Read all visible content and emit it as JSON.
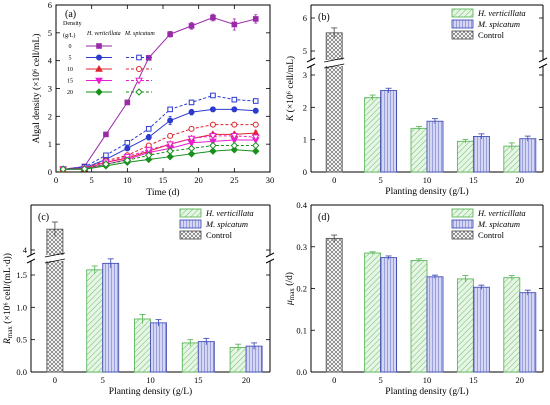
{
  "colors": {
    "hv_fill": "#e6f5e4",
    "hv_stroke": "#5cb85c",
    "ms_fill": "#d4d6f4",
    "ms_stroke": "#4450b8",
    "control_fill": "#ffffff",
    "control_stroke": "#555555"
  },
  "chart_data": [
    {
      "panel": "(a)",
      "type": "line",
      "xlabel": "Time (d)",
      "ylabel": "Algal density (×10⁶ cell/mL)",
      "xlim": [
        0,
        30
      ],
      "ylim": [
        0,
        6
      ],
      "xticks": [
        "0",
        "5",
        "10",
        "15",
        "20",
        "25",
        "30"
      ],
      "yticks": [
        "0",
        "1",
        "2",
        "3",
        "4",
        "5",
        "6"
      ],
      "legend": {
        "title": "Density",
        "unit": "(g/L)",
        "col1": "H. verticillata",
        "col2": "M. spicatum",
        "rows": [
          "0",
          "5",
          "10",
          "15",
          "20"
        ]
      },
      "x": [
        1,
        4,
        7,
        10,
        13,
        16,
        19,
        22,
        25,
        28
      ],
      "series": [
        {
          "species": "control",
          "density": "0",
          "color": "#9b2aa8",
          "dashed": false,
          "filled": true,
          "marker": "square",
          "values": [
            0.1,
            0.2,
            1.35,
            2.5,
            4.1,
            4.95,
            5.25,
            5.55,
            5.3,
            5.5
          ],
          "err": [
            0,
            0.05,
            0.06,
            0.08,
            0.08,
            0.1,
            0.12,
            0.12,
            0.2,
            0.15
          ]
        },
        {
          "species": "H. verticillata",
          "density": "5",
          "color": "#2b3bd0",
          "dashed": false,
          "filled": true,
          "marker": "circle",
          "values": [
            0.1,
            0.15,
            0.45,
            0.85,
            1.25,
            1.85,
            2.15,
            2.25,
            2.25,
            2.2
          ],
          "err": [
            0,
            0.03,
            0.05,
            0.08,
            0.1,
            0.15,
            0.1,
            0.08,
            0.08,
            0.08
          ]
        },
        {
          "species": "M. spicatum",
          "density": "5",
          "color": "#2b3bd0",
          "dashed": true,
          "filled": false,
          "marker": "square",
          "values": [
            0.1,
            0.18,
            0.6,
            1.05,
            1.55,
            2.25,
            2.5,
            2.75,
            2.6,
            2.55
          ],
          "err": [
            0,
            0.03,
            0.05,
            0.06,
            0.08,
            0.08,
            0.08,
            0.06,
            0.08,
            0.06
          ]
        },
        {
          "species": "H. verticillata",
          "density": "10",
          "color": "#e0242b",
          "dashed": false,
          "filled": true,
          "marker": "triangle",
          "values": [
            0.1,
            0.12,
            0.35,
            0.5,
            0.75,
            1.0,
            1.2,
            1.35,
            1.35,
            1.4
          ],
          "err": [
            0,
            0.03,
            0.04,
            0.05,
            0.05,
            0.06,
            0.06,
            0.08,
            0.08,
            0.08
          ]
        },
        {
          "species": "M. spicatum",
          "density": "10",
          "color": "#e0242b",
          "dashed": true,
          "filled": false,
          "marker": "circle",
          "values": [
            0.1,
            0.13,
            0.4,
            0.6,
            0.95,
            1.3,
            1.55,
            1.7,
            1.7,
            1.7
          ],
          "err": [
            0,
            0.03,
            0.04,
            0.05,
            0.06,
            0.06,
            0.06,
            0.06,
            0.06,
            0.06
          ]
        },
        {
          "species": "H. verticillata",
          "density": "15",
          "color": "#e81fd0",
          "dashed": false,
          "filled": true,
          "marker": "triangle-down",
          "values": [
            0.1,
            0.1,
            0.28,
            0.45,
            0.7,
            0.85,
            1.05,
            1.1,
            1.15,
            1.15
          ],
          "err": [
            0,
            0.02,
            0.03,
            0.04,
            0.05,
            0.06,
            0.06,
            0.06,
            0.06,
            0.06
          ]
        },
        {
          "species": "M. spicatum",
          "density": "15",
          "color": "#e81fd0",
          "dashed": true,
          "filled": false,
          "marker": "triangle-down",
          "values": [
            0.1,
            0.12,
            0.35,
            0.55,
            0.8,
            1.0,
            1.2,
            1.3,
            1.3,
            1.25
          ],
          "err": [
            0,
            0.02,
            0.03,
            0.04,
            0.05,
            0.05,
            0.05,
            0.05,
            0.05,
            0.05
          ]
        },
        {
          "species": "H. verticillata",
          "density": "20",
          "color": "#17901c",
          "dashed": false,
          "filled": true,
          "marker": "diamond",
          "values": [
            0.1,
            0.1,
            0.22,
            0.35,
            0.45,
            0.55,
            0.65,
            0.75,
            0.8,
            0.75
          ],
          "err": [
            0,
            0.02,
            0.03,
            0.03,
            0.04,
            0.04,
            0.05,
            0.05,
            0.05,
            0.05
          ]
        },
        {
          "species": "M. spicatum",
          "density": "20",
          "color": "#17901c",
          "dashed": true,
          "filled": false,
          "marker": "diamond",
          "values": [
            0.1,
            0.11,
            0.28,
            0.42,
            0.6,
            0.75,
            0.85,
            0.95,
            0.95,
            0.95
          ],
          "err": [
            0,
            0.02,
            0.03,
            0.03,
            0.04,
            0.04,
            0.04,
            0.04,
            0.04,
            0.04
          ]
        }
      ]
    },
    {
      "panel": "(b)",
      "type": "bar",
      "xlabel": "Planting density (g/L)",
      "ylabel": "K (×10⁶ cell/mL)",
      "categories": [
        "0",
        "5",
        "10",
        "15",
        "20"
      ],
      "yticks": [
        "0",
        "1",
        "2",
        "3",
        "5",
        "6"
      ],
      "legend": [
        "H. verticillata",
        "M. spicatum",
        "Control"
      ],
      "control": {
        "value": 5.55,
        "err": 0.15
      },
      "series": [
        {
          "name": "H. verticillata",
          "values": [
            null,
            2.3,
            1.35,
            0.95,
            0.8
          ],
          "err": [
            null,
            0.08,
            0.06,
            0.06,
            0.1
          ]
        },
        {
          "name": "M. spicatum",
          "values": [
            null,
            2.52,
            1.57,
            1.1,
            1.03
          ],
          "err": [
            null,
            0.07,
            0.08,
            0.08,
            0.08
          ]
        }
      ]
    },
    {
      "panel": "(c)",
      "type": "bar",
      "xlabel": "Planting density (g/L)",
      "ylabel": "R_max (×10⁶ cell/(mL·d))",
      "categories": [
        "0",
        "5",
        "10",
        "15",
        "20"
      ],
      "yticks": [
        "0.0",
        "0.5",
        "1.0",
        "1.5",
        "4"
      ],
      "legend": [
        "H. verticillata",
        "M. spicatum",
        "Control"
      ],
      "control": {
        "value": 4.52,
        "err": 0.18
      },
      "series": [
        {
          "name": "H. verticillata",
          "values": [
            null,
            1.58,
            0.82,
            0.45,
            0.38
          ],
          "err": [
            null,
            0.06,
            0.07,
            0.05,
            0.05
          ]
        },
        {
          "name": "M. spicatum",
          "values": [
            null,
            1.68,
            0.76,
            0.47,
            0.4
          ],
          "err": [
            null,
            0.07,
            0.05,
            0.05,
            0.05
          ]
        }
      ]
    },
    {
      "panel": "(d)",
      "type": "bar",
      "xlabel": "Planting density (g/L)",
      "ylabel": "μ_max (/d)",
      "categories": [
        "0",
        "5",
        "10",
        "15",
        "20"
      ],
      "yticks": [
        "0.0",
        "0.1",
        "0.2",
        "0.3",
        "0.4"
      ],
      "ylim": [
        0,
        0.4
      ],
      "legend": [
        "H. verticillata",
        "M. spicatum",
        "Control"
      ],
      "control": {
        "value": 0.32,
        "err": 0.008
      },
      "series": [
        {
          "name": "H. verticillata",
          "values": [
            null,
            0.285,
            0.267,
            0.223,
            0.226
          ],
          "err": [
            null,
            0.003,
            0.004,
            0.008,
            0.005
          ]
        },
        {
          "name": "M. spicatum",
          "values": [
            null,
            0.274,
            0.228,
            0.203,
            0.19
          ],
          "err": [
            null,
            0.004,
            0.004,
            0.005,
            0.006
          ]
        }
      ]
    }
  ]
}
